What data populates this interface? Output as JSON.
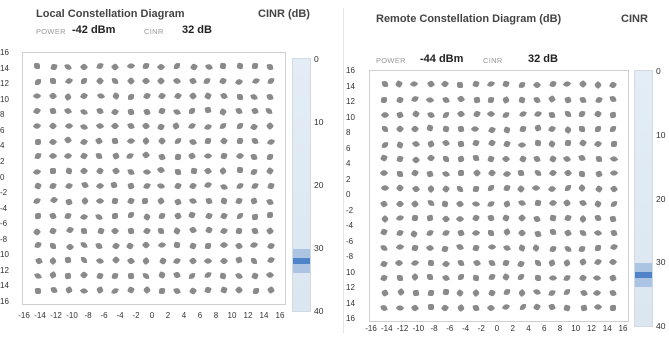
{
  "local": {
    "title": "Local Constellation Diagram",
    "cinr_header": "CINR (dB)",
    "power_label": "POWER",
    "power_value": "-42 dBm",
    "cinr_label": "CINR",
    "cinr_value": "32 dB",
    "cinr_db": 32
  },
  "remote": {
    "title": "Remote Constellation Diagram (dB)",
    "cinr_header": "CINR",
    "power_label": "POWER",
    "power_value": "-44 dBm",
    "cinr_label": "CINR",
    "cinr_value": "32 dB",
    "cinr_db": 32
  },
  "y_tick_labels": [
    "16",
    "14",
    "12",
    "10",
    "8",
    "6",
    "4",
    "2",
    "0",
    "-2",
    "-4",
    "-6",
    "-8",
    "-10",
    "-12",
    "-14",
    "-16"
  ],
  "local_y_tick_labels": [
    "16",
    "14",
    "12",
    "10",
    "8",
    "6",
    "4",
    "2",
    "0",
    "-2",
    "-4",
    "-6",
    "-8",
    "10",
    "12",
    "14",
    "16"
  ],
  "remote_y_tick_labels": [
    "16",
    "14",
    "12",
    "10",
    "8",
    "6",
    "4",
    "2",
    "0",
    "-2",
    "-4",
    "-6",
    "-8",
    "10",
    "12",
    "14",
    "16"
  ],
  "x_tick_labels": [
    "-16",
    "-14",
    "-12",
    "-10",
    "-8",
    "-6",
    "-4",
    "-2",
    "0",
    "2",
    "4",
    "6",
    "8",
    "10",
    "12",
    "14",
    "16"
  ],
  "cinr_scale": [
    "0",
    "10",
    "20",
    "30",
    "40"
  ],
  "constellation": {
    "points_per_axis": 16,
    "point_color": "#8a8a8a"
  }
}
